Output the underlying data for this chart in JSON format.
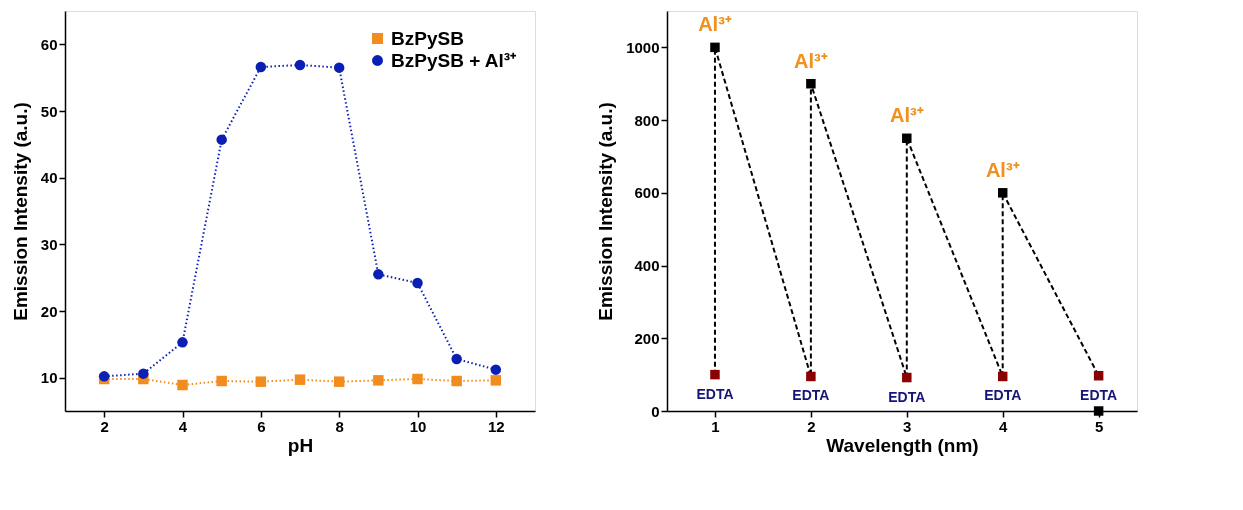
{
  "chart_data": [
    {
      "type": "line",
      "xlabel": "pH",
      "ylabel": "Emission Intensity (a.u.)",
      "xlim": [
        1,
        13
      ],
      "ylim": [
        5,
        65
      ],
      "xticks": [
        2,
        4,
        6,
        8,
        10,
        12
      ],
      "yticks": [
        10,
        20,
        30,
        40,
        50,
        60
      ],
      "legend": "top right",
      "grid": false,
      "line_style": "dotted",
      "series": [
        {
          "name": "BzPySB",
          "color": "#f28c1e",
          "marker": "square",
          "x": [
            2,
            3,
            4,
            5,
            6,
            7,
            8,
            9,
            10,
            11,
            12
          ],
          "values": [
            9.8,
            9.8,
            8.9,
            9.5,
            9.4,
            9.7,
            9.4,
            9.6,
            9.8,
            9.5,
            9.6
          ]
        },
        {
          "name": "BzPySB + Al³⁺",
          "color": "#0a1fb4",
          "marker": "circle",
          "x": [
            2,
            3,
            4,
            5,
            6,
            7,
            8,
            9,
            10,
            11,
            12
          ],
          "values": [
            10.2,
            10.6,
            15.3,
            45.7,
            56.6,
            56.9,
            56.5,
            25.5,
            24.2,
            12.8,
            11.2
          ]
        }
      ]
    },
    {
      "type": "line",
      "xlabel": "Wavelength (nm)",
      "ylabel": "Emission Intensity (a.u.)",
      "xlim": [
        0.5,
        5.4
      ],
      "ylim": [
        0,
        1100
      ],
      "xticks": [
        1,
        2,
        3,
        4,
        5
      ],
      "yticks": [
        0,
        200,
        400,
        600,
        800,
        1000
      ],
      "legend": false,
      "grid": false,
      "series": [
        {
          "type": "line",
          "color": "#000000",
          "marker": "none",
          "line_style": "dashed",
          "x": [
            1,
            1,
            2,
            2,
            3,
            3,
            4,
            4,
            5
          ],
          "values": [
            100,
            1000,
            95,
            900,
            92,
            750,
            95,
            600,
            97
          ]
        },
        {
          "type": "scatter",
          "color": "#000000",
          "marker": "square",
          "x": [
            1,
            2,
            3,
            4,
            5
          ],
          "values": [
            1000,
            900,
            750,
            600,
            0
          ]
        },
        {
          "type": "scatter",
          "color": "#8b0000",
          "marker": "square",
          "x": [
            1,
            2,
            3,
            4,
            5
          ],
          "values": [
            100,
            95,
            92,
            95,
            97
          ]
        }
      ],
      "annotations": [
        {
          "text": "Al³⁺",
          "x": 1,
          "y": 1000
        },
        {
          "text": "Al³⁺",
          "x": 2,
          "y": 900
        },
        {
          "text": "Al³⁺",
          "x": 3,
          "y": 750
        },
        {
          "text": "Al³⁺",
          "x": 4,
          "y": 600
        },
        {
          "text": "EDTA",
          "x": 1,
          "y": 100
        },
        {
          "text": "EDTA",
          "x": 2,
          "y": 95
        },
        {
          "text": "EDTA",
          "x": 3,
          "y": 92
        },
        {
          "text": "EDTA",
          "x": 4,
          "y": 95
        },
        {
          "text": "EDTA",
          "x": 5,
          "y": 97
        }
      ]
    }
  ]
}
